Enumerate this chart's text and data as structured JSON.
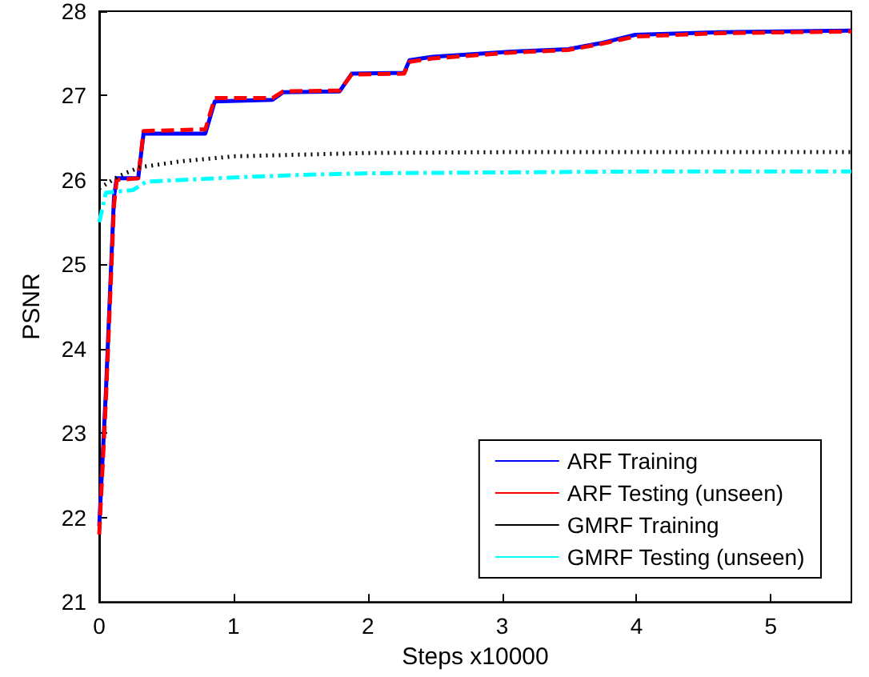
{
  "chart_data": {
    "type": "line",
    "xlabel": "Steps x10000",
    "ylabel": "PSNR",
    "xlim": [
      0,
      5.6
    ],
    "ylim": [
      21,
      28
    ],
    "xticks": [
      0,
      1,
      2,
      3,
      4,
      5
    ],
    "yticks": [
      21,
      22,
      23,
      24,
      25,
      26,
      27,
      28
    ],
    "grid": false,
    "legend": "bottom right",
    "marker": "none",
    "series": [
      {
        "name": "ARF Training",
        "color": "#0000ff",
        "line_style": "solid",
        "x": [
          0,
          0.05,
          0.11,
          0.13,
          0.29,
          0.33,
          0.79,
          0.86,
          1.29,
          1.37,
          1.79,
          1.88,
          2.27,
          2.31,
          2.48,
          3.07,
          3.49,
          3.73,
          3.99,
          4.62,
          5.6
        ],
        "values": [
          21.9,
          23.5,
          25.8,
          26.02,
          26.02,
          26.55,
          26.55,
          26.93,
          26.95,
          27.04,
          27.05,
          27.26,
          27.27,
          27.42,
          27.46,
          27.52,
          27.55,
          27.62,
          27.72,
          27.75,
          27.77
        ]
      },
      {
        "name": "ARF Testing (unseen)",
        "color": "#ff0000",
        "line_style": "dashed",
        "x": [
          0,
          0.05,
          0.11,
          0.13,
          0.29,
          0.33,
          0.79,
          0.86,
          1.29,
          1.37,
          1.79,
          1.88,
          2.27,
          2.31,
          2.48,
          3.07,
          3.49,
          3.73,
          3.99,
          4.62,
          5.6
        ],
        "values": [
          21.8,
          23.4,
          25.7,
          26.0,
          26.02,
          26.58,
          26.6,
          26.97,
          26.97,
          27.05,
          27.06,
          27.25,
          27.26,
          27.4,
          27.44,
          27.51,
          27.54,
          27.61,
          27.7,
          27.74,
          27.76
        ]
      },
      {
        "name": "GMRF Training",
        "color": "#000000",
        "line_style": "dotted",
        "x": [
          0,
          0.05,
          0.15,
          0.3,
          0.6,
          1,
          1.5,
          2,
          3,
          4,
          5.6
        ],
        "values": [
          25.9,
          25.95,
          26.05,
          26.15,
          26.22,
          26.28,
          26.3,
          26.32,
          26.33,
          26.33,
          26.33
        ]
      },
      {
        "name": "GMRF Testing (unseen)",
        "color": "#00ffff",
        "line_style": "dashdot",
        "x": [
          0,
          0.05,
          0.25,
          0.35,
          0.6,
          1,
          1.5,
          2,
          3,
          4,
          5.6
        ],
        "values": [
          25.5,
          25.85,
          25.88,
          25.98,
          26.0,
          26.03,
          26.06,
          26.08,
          26.09,
          26.1,
          26.1
        ]
      }
    ]
  }
}
